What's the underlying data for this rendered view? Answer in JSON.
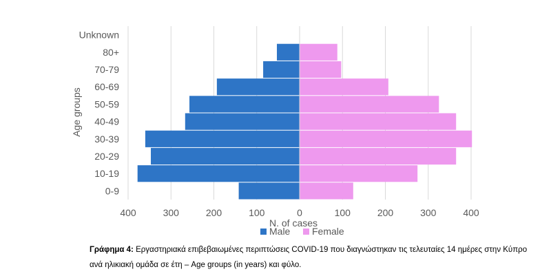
{
  "chart_data": {
    "type": "bar",
    "orientation": "horizontal",
    "layout": "population-pyramid",
    "categories": [
      "0-9",
      "10-19",
      "20-29",
      "30-39",
      "40-49",
      "50-59",
      "60-69",
      "70-79",
      "80+",
      "Unknown"
    ],
    "series": [
      {
        "name": "Male",
        "side": "left",
        "color": "#2E75C6",
        "values": [
          142,
          378,
          347,
          360,
          267,
          257,
          193,
          85,
          53,
          0
        ]
      },
      {
        "name": "Female",
        "side": "right",
        "color": "#EE99EE",
        "values": [
          125,
          275,
          365,
          402,
          365,
          325,
          207,
          97,
          88,
          0
        ]
      }
    ],
    "title": "",
    "xlabel": "N. of cases",
    "ylabel": "Age groups",
    "xlim": [
      -400,
      400
    ],
    "x_ticks": [
      -400,
      -300,
      -200,
      -100,
      0,
      100,
      200,
      300,
      400
    ],
    "x_tick_labels": [
      "400",
      "300",
      "200",
      "100",
      "0",
      "100",
      "200",
      "300",
      "400"
    ],
    "grid": "vertical",
    "legend_position": "bottom"
  },
  "caption": {
    "label": "Γράφημα 4:",
    "text": "Εργαστηριακά επιβεβαιωμένες περιπτώσεις COVID-19 που διαγνώστηκαν τις τελευταίες 14 ημέρες στην Κύπρο ανά ηλικιακή ομάδα σε έτη – Age groups (in years) και φύλο."
  }
}
